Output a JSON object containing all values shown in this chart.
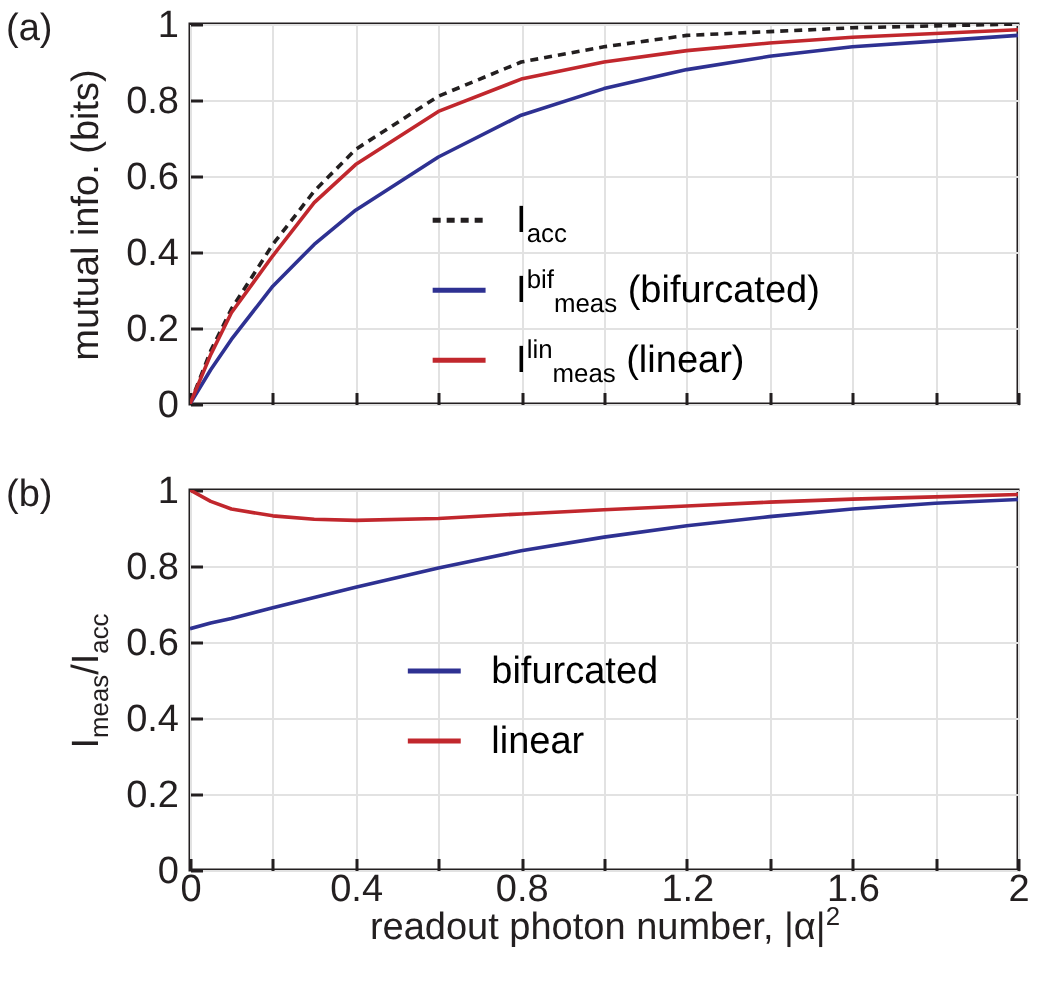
{
  "chart_data": [
    {
      "type": "line",
      "annotations": [
        "(a)"
      ],
      "ylabel": "mutual info. (bits)",
      "x": [
        0,
        0.05,
        0.1,
        0.2,
        0.3,
        0.4,
        0.6,
        0.8,
        1.0,
        1.2,
        1.4,
        1.6,
        1.8,
        2.0
      ],
      "series": [
        {
          "name": "I$_{acc}$",
          "color": "#231f20",
          "line_style": "dashed",
          "values": [
            0,
            0.14,
            0.25,
            0.42,
            0.56,
            0.67,
            0.81,
            0.9,
            0.94,
            0.97,
            0.98,
            0.99,
            0.995,
            1.0
          ]
        },
        {
          "name": "I$^{bif}$$_{meas}$ (bifurcated)",
          "color": "#2e3192",
          "line_style": "solid",
          "values": [
            0,
            0.09,
            0.17,
            0.31,
            0.42,
            0.51,
            0.65,
            0.76,
            0.83,
            0.88,
            0.915,
            0.94,
            0.955,
            0.97
          ]
        },
        {
          "name": "I$^{lin}$$_{meas}$ (linear)",
          "color": "#c1272d",
          "line_style": "solid",
          "values": [
            0,
            0.13,
            0.24,
            0.39,
            0.53,
            0.63,
            0.77,
            0.855,
            0.9,
            0.93,
            0.95,
            0.965,
            0.975,
            0.985
          ]
        }
      ],
      "xlim": [
        0,
        2
      ],
      "xticks": [
        {
          "value": 0,
          "label": null
        },
        {
          "value": 0.2,
          "label": null
        },
        {
          "value": 0.4,
          "label": null
        },
        {
          "value": 0.6,
          "label": null
        },
        {
          "value": 0.8,
          "label": null
        },
        {
          "value": 1,
          "label": null
        },
        {
          "value": 1.2,
          "label": null
        },
        {
          "value": 1.4,
          "label": null
        },
        {
          "value": 1.6,
          "label": null
        },
        {
          "value": 1.8,
          "label": null
        },
        {
          "value": 2,
          "label": null
        }
      ],
      "ylim": [
        0,
        1
      ],
      "yticks": [
        0,
        0.2,
        0.4,
        0.6,
        0.8,
        1
      ],
      "tick_labels": "y",
      "grid": true,
      "legend": "bottom right"
    },
    {
      "type": "line",
      "annotations": [
        "(b)"
      ],
      "ylabel": "I$_{meas}$/I$_{acc}$",
      "xlabel": "readout photon number, |α|$^{2}$",
      "x": [
        0,
        0.05,
        0.1,
        0.2,
        0.3,
        0.4,
        0.6,
        0.8,
        1.0,
        1.2,
        1.4,
        1.6,
        1.8,
        2.0
      ],
      "series": [
        {
          "name": "bifurcated",
          "color": "#2e3192",
          "line_style": "solid",
          "values": [
            0.635,
            0.65,
            0.662,
            0.69,
            0.717,
            0.744,
            0.795,
            0.84,
            0.876,
            0.906,
            0.93,
            0.95,
            0.965,
            0.975
          ]
        },
        {
          "name": "linear",
          "color": "#c1272d",
          "line_style": "solid",
          "values": [
            1.0,
            0.97,
            0.95,
            0.932,
            0.923,
            0.92,
            0.925,
            0.937,
            0.948,
            0.958,
            0.968,
            0.976,
            0.982,
            0.988
          ]
        }
      ],
      "xlim": [
        0,
        2
      ],
      "xticks": [
        0,
        {
          "value": 0.2,
          "label": null
        },
        0.4,
        {
          "value": 0.6,
          "label": null
        },
        0.8,
        {
          "value": 1,
          "label": null
        },
        1.2,
        {
          "value": 1.4,
          "label": null
        },
        1.6,
        {
          "value": 1.8,
          "label": null
        },
        2
      ],
      "ylim": [
        0,
        1
      ],
      "yticks": [
        0,
        0.2,
        0.4,
        0.6,
        0.8,
        1
      ],
      "grid": true,
      "legend": "bottom"
    }
  ]
}
